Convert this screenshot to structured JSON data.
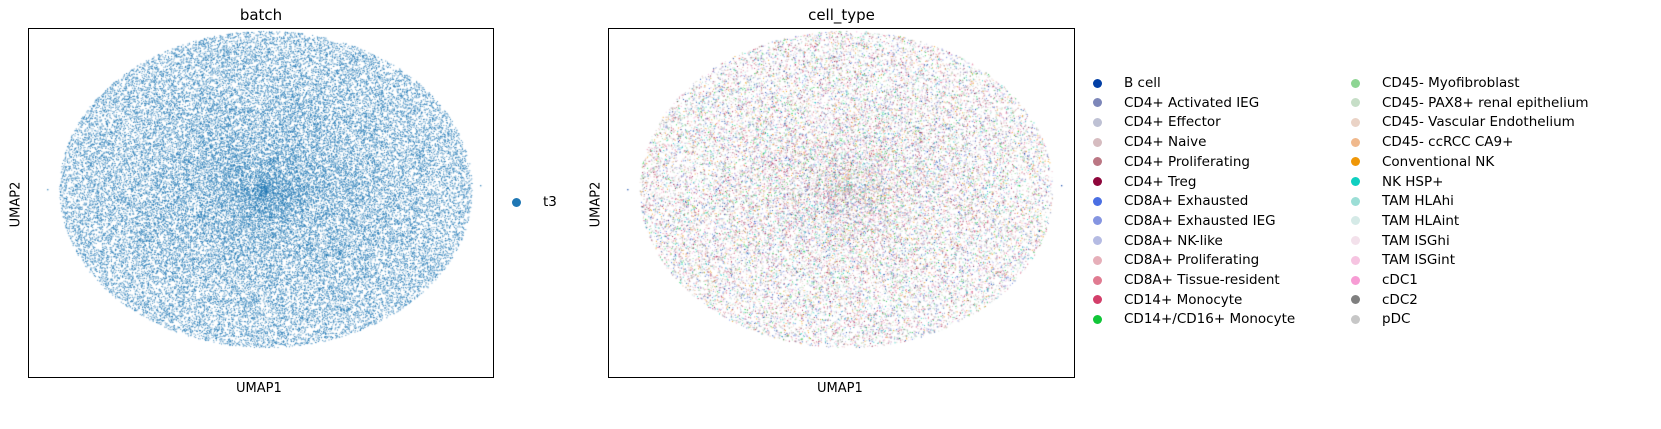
{
  "chart_data": [
    {
      "type": "scatter",
      "title": "batch",
      "xlabel": "UMAP1",
      "ylabel": "UMAP2",
      "ticks": "none",
      "grid": false,
      "legend_placement": "right",
      "series": [
        {
          "name": "t3",
          "color": "#1f77b4"
        }
      ]
    },
    {
      "type": "scatter",
      "title": "cell_type",
      "xlabel": "UMAP1",
      "ylabel": "UMAP2",
      "ticks": "none",
      "grid": false,
      "legend_placement": "right",
      "series": [
        {
          "name": "B cell",
          "color": "#023fa5"
        },
        {
          "name": "CD4+ Activated IEG",
          "color": "#7d87b9"
        },
        {
          "name": "CD4+ Effector",
          "color": "#bec1d4"
        },
        {
          "name": "CD4+ Naive",
          "color": "#d6bcc0"
        },
        {
          "name": "CD4+ Proliferating",
          "color": "#bb7784"
        },
        {
          "name": "CD4+ Treg",
          "color": "#8e063b"
        },
        {
          "name": "CD8A+ Exhausted",
          "color": "#4a6fe3"
        },
        {
          "name": "CD8A+ Exhausted IEG",
          "color": "#8595e1"
        },
        {
          "name": "CD8A+ NK-like",
          "color": "#b5bbe3"
        },
        {
          "name": "CD8A+ Proliferating",
          "color": "#e6afb9"
        },
        {
          "name": "CD8A+ Tissue-resident",
          "color": "#e07b91"
        },
        {
          "name": "CD14+ Monocyte",
          "color": "#d33f6a"
        },
        {
          "name": "CD14+/CD16+ Monocyte",
          "color": "#11c638"
        },
        {
          "name": "CD45- Myofibroblast",
          "color": "#8dd593"
        },
        {
          "name": "CD45- PAX8+ renal epithelium",
          "color": "#c6dec7"
        },
        {
          "name": "CD45- Vascular Endothelium",
          "color": "#ead3c6"
        },
        {
          "name": "CD45- ccRCC CA9+",
          "color": "#f0b98d"
        },
        {
          "name": "Conventional NK",
          "color": "#ef9708"
        },
        {
          "name": "NK HSP+",
          "color": "#0fcfc0"
        },
        {
          "name": "TAM HLAhi",
          "color": "#9cded6"
        },
        {
          "name": "TAM HLAint",
          "color": "#d5eae7"
        },
        {
          "name": "TAM ISGhi",
          "color": "#f3e1eb"
        },
        {
          "name": "TAM ISGint",
          "color": "#f6c4e1"
        },
        {
          "name": "cDC1",
          "color": "#f79cd4"
        },
        {
          "name": "cDC2",
          "color": "#7f7f7f"
        },
        {
          "name": "pDC",
          "color": "#c7c7c7"
        }
      ]
    }
  ]
}
